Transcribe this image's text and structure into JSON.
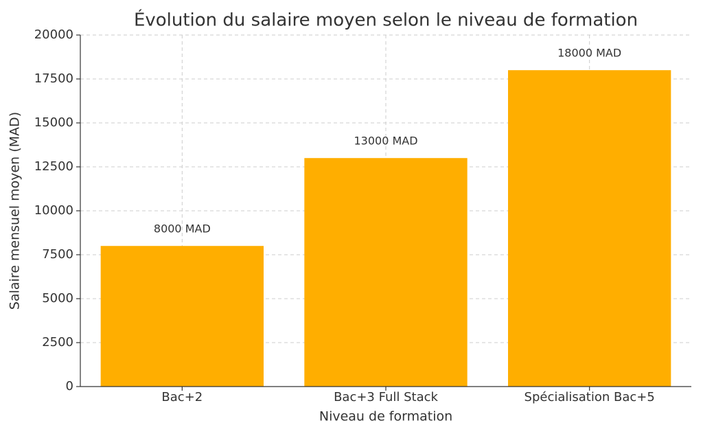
{
  "chart_data": {
    "type": "bar",
    "title": "Évolution du salaire moyen selon le niveau de formation",
    "x_label": "Niveau de formation",
    "y_label": "Salaire mensuel moyen (MAD)",
    "categories": [
      "Bac+2",
      "Bac+3 Full Stack",
      "Spécialisation Bac+5"
    ],
    "values": [
      8000,
      13000,
      18000
    ],
    "value_labels": [
      "8000 MAD",
      "13000 MAD",
      "18000 MAD"
    ],
    "color": "#ffae00",
    "ylim": [
      0,
      20000
    ],
    "yticks": [
      0,
      2500,
      5000,
      7500,
      10000,
      12500,
      15000,
      17500,
      20000
    ],
    "grid": true
  }
}
